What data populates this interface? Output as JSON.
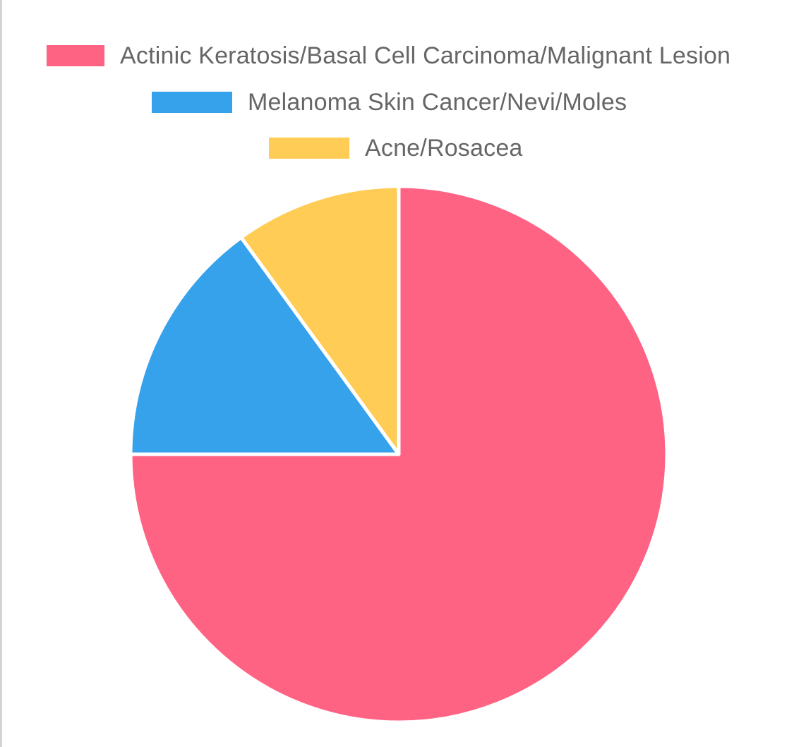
{
  "chart_data": {
    "type": "pie",
    "title": "",
    "legend_position": "top",
    "series": [
      {
        "values": [
          75,
          15,
          10
        ]
      }
    ],
    "categories": [
      "Actinic Keratosis/Basal Cell Carcinoma/Malignant Lesion",
      "Melanoma Skin Cancer/Nevi/Moles",
      "Acne/Rosacea"
    ],
    "legend": [
      {
        "label": "Actinic Keratosis/Basal Cell Carcinoma/Malignant Lesion",
        "color": "#ff6384"
      },
      {
        "label": "Melanoma Skin Cancer/Nevi/Moles",
        "color": "#36a2eb"
      },
      {
        "label": "Acne/Rosacea",
        "color": "#ffcd56"
      }
    ],
    "colors": [
      "#ff6384",
      "#36a2eb",
      "#ffcd56"
    ],
    "slice_border_color": "#ffffff"
  }
}
